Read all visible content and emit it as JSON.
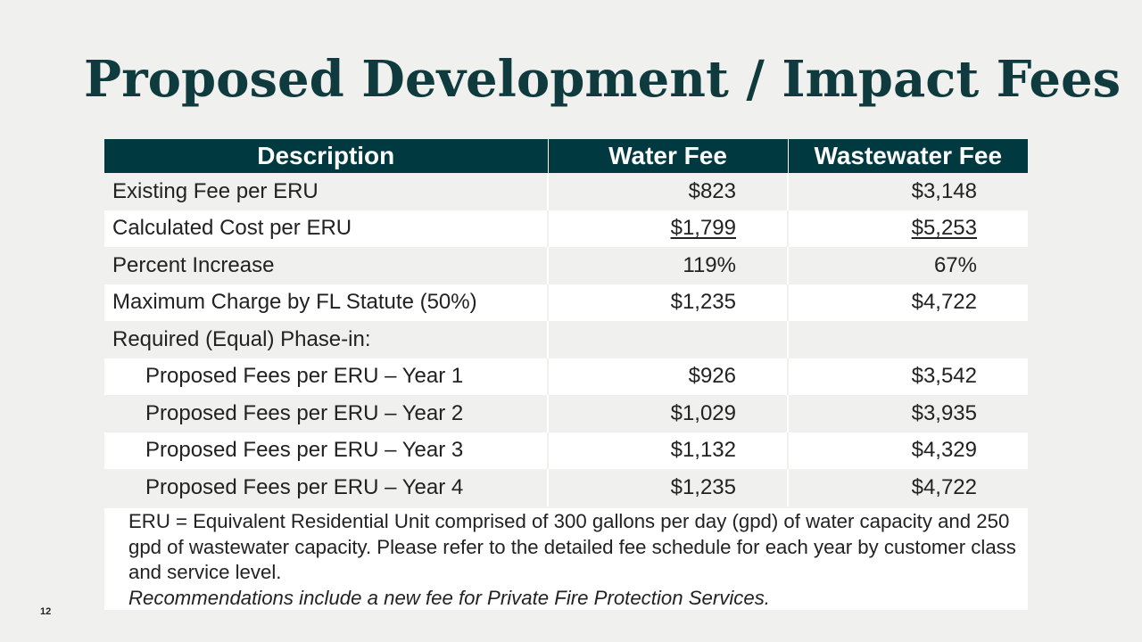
{
  "slide": {
    "title": "Proposed Development / Impact Fees",
    "page_number": "12"
  },
  "table": {
    "headers": [
      "Description",
      "Water Fee",
      "Wastewater Fee"
    ],
    "rows": [
      {
        "description": "Existing Fee per ERU",
        "water": "$823",
        "wastewater": "$3,148"
      },
      {
        "description": "Calculated Cost per ERU",
        "water": "$1,799",
        "wastewater": "$5,253"
      },
      {
        "description": "Percent Increase",
        "water": "119%",
        "wastewater": "67%"
      },
      {
        "description": "Maximum Charge by FL Statute (50%)",
        "water": "$1,235",
        "wastewater": "$4,722"
      },
      {
        "description": "Required (Equal) Phase-in:",
        "water": "",
        "wastewater": ""
      },
      {
        "description": "Proposed Fees per ERU – Year 1",
        "water": "$926",
        "wastewater": "$3,542"
      },
      {
        "description": "Proposed Fees per ERU – Year 2",
        "water": "$1,029",
        "wastewater": "$3,935"
      },
      {
        "description": "Proposed Fees per ERU – Year 3",
        "water": "$1,132",
        "wastewater": "$4,329"
      },
      {
        "description": "Proposed Fees per ERU – Year 4",
        "water": "$1,235",
        "wastewater": "$4,722"
      }
    ]
  },
  "footnote": {
    "definition": "ERU = Equivalent Residential Unit comprised of 300 gallons per day (gpd) of water capacity and 250 gpd of wastewater capacity. Please refer to the detailed fee schedule for each year by customer class and service level.",
    "recommendation": "Recommendations include a new fee for Private Fire Protection Services."
  },
  "colors": {
    "title": "#0f3b3e",
    "header_bg": "#003a40",
    "header_text": "#ffffff",
    "background": "#f0f0ef",
    "band_white": "#ffffff"
  }
}
